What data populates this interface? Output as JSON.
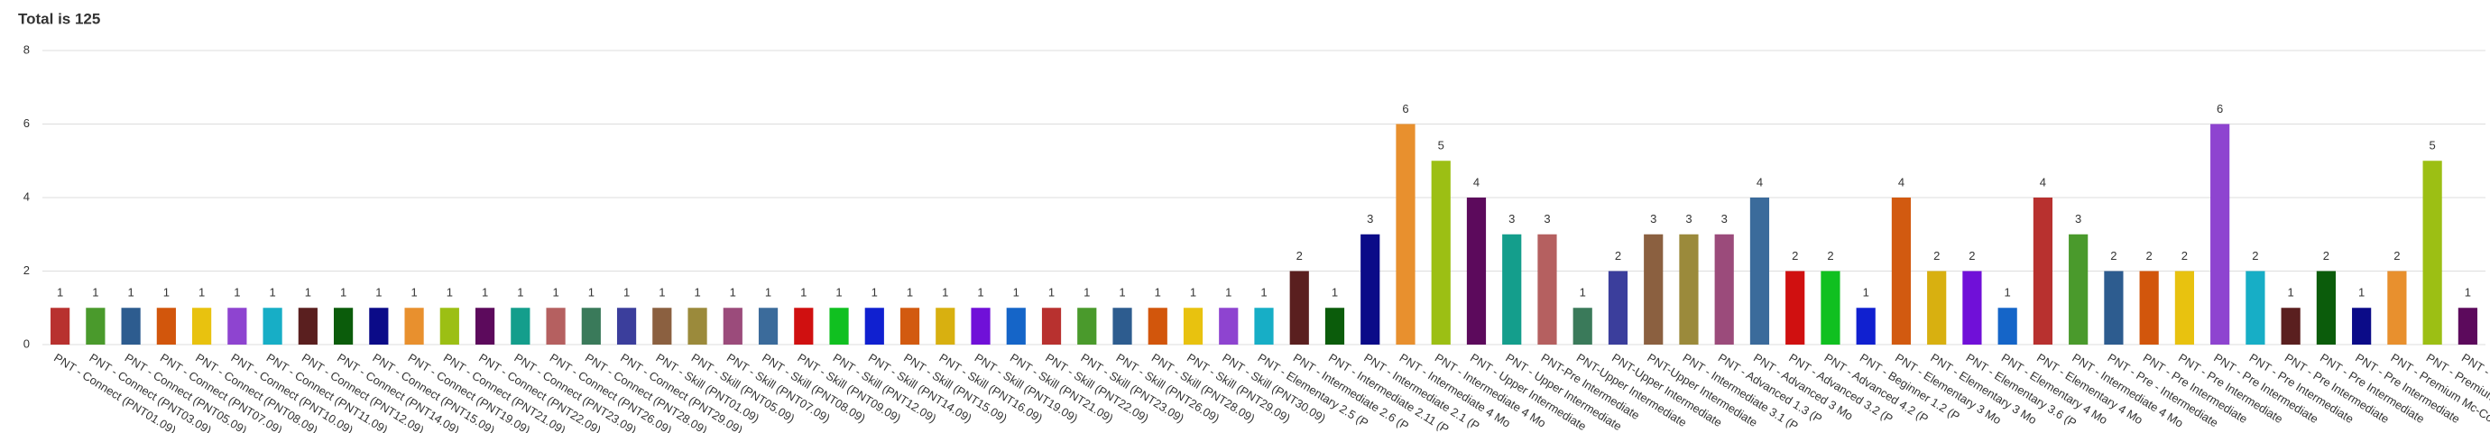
{
  "chart_data": {
    "type": "bar",
    "title": "Total is 125",
    "categories": [
      "PNT - Connect (PNT01.09)",
      "PNT - Connect (PNT03.09)",
      "PNT - Connect (PNT05.09)",
      "PNT - Connect (PNT07.09)",
      "PNT - Connect (PNT08.09)",
      "PNT - Connect (PNT10.09)",
      "PNT - Connect (PNT11.09)",
      "PNT - Connect (PNT12.09)",
      "PNT - Connect (PNT14.09)",
      "PNT - Connect (PNT15.09)",
      "PNT - Connect (PNT19.09)",
      "PNT - Connect (PNT21.09)",
      "PNT - Connect (PNT22.09)",
      "PNT - Connect (PNT23.09)",
      "PNT - Connect (PNT26.09)",
      "PNT - Connect (PNT28.09)",
      "PNT - Connect (PNT29.09)",
      "PNT - Skill (PNT01.09)",
      "PNT - Skill (PNT05.09)",
      "PNT - Skill (PNT07.09)",
      "PNT - Skill (PNT08.09)",
      "PNT - Skill (PNT09.09)",
      "PNT - Skill (PNT12.09)",
      "PNT - Skill (PNT14.09)",
      "PNT - Skill (PNT15.09)",
      "PNT - Skill (PNT16.09)",
      "PNT - Skill (PNT19.09)",
      "PNT - Skill (PNT21.09)",
      "PNT - Skill (PNT22.09)",
      "PNT - Skill (PNT23.09)",
      "PNT - Skill (PNT26.09)",
      "PNT - Skill (PNT28.09)",
      "PNT - Skill (PNT29.09)",
      "PNT - Skill (PNT30.09)",
      "PNT - Elementary 2.5 (P",
      "PNT - Intermediate 2.6 (P",
      "PNT - Intermediate 2.11 (P",
      "PNT - Intermediate 2.1 (P",
      "PNT - Intermediate 4 Mo",
      "PNT - Intermediate 4 Mo",
      "PNT - Upper Intermediate",
      "PNT - Upper Intermediate",
      "PNT-Pre Intermediate",
      "PNT-Upper Intermediate",
      "PNT-Upper Intermediate",
      "PNT-Upper Intermediate",
      "PNT - Intermediate 3.1 (P",
      "PNT - Advanced 1.3 (P",
      "PNT - Advanced 3 Mo",
      "PNT - Advanced 3.2 (P",
      "PNT - Advanced 4.2 (P",
      "PNT - Beginner 1.2 (P",
      "PNT - Elementary 3 Mo",
      "PNT - Elementary 3 Mo",
      "PNT - Elementary 3.6 (P",
      "PNT - Elementary 4 Mo",
      "PNT - Elementary 4 Mo",
      "PNT - Intermediate 4 Mo",
      "PNT - Pre - Intermediate",
      "PNT - Pre Intermediate",
      "PNT - Pre Intermediate",
      "PNT - Pre Intermediate",
      "PNT - Pre Intermediate",
      "PNT - Pre Intermediate",
      "PNT - Pre Intermediate",
      "PNT - Pre Intermediate",
      "PNT - Premium Mc-Co",
      "PNT - Premium Mc-Co",
      "PNT - Upper Intermediate"
    ],
    "values": [
      1,
      1,
      1,
      1,
      1,
      1,
      1,
      1,
      1,
      1,
      1,
      1,
      1,
      1,
      1,
      1,
      1,
      1,
      1,
      1,
      1,
      1,
      1,
      1,
      1,
      1,
      1,
      1,
      1,
      1,
      1,
      1,
      1,
      1,
      1,
      2,
      1,
      3,
      6,
      5,
      4,
      3,
      3,
      1,
      2,
      3,
      3,
      3,
      4,
      2,
      2,
      1,
      4,
      2,
      2,
      1,
      4,
      3,
      2,
      2,
      2,
      6,
      2,
      1,
      2,
      1,
      2,
      5,
      1
    ],
    "palette": [
      "#b8312f",
      "#4a9a2c",
      "#2d5c8f",
      "#d2560c",
      "#e8c20f",
      "#8e44d0",
      "#17aec6",
      "#5a1f1f",
      "#0b5c0b",
      "#0b0b88",
      "#e8902e",
      "#9cbf14",
      "#5c0a5c",
      "#149e8c",
      "#b56060",
      "#3a7a5a",
      "#3b3e9c",
      "#8b6040",
      "#9b8a3b",
      "#9b4b7b",
      "#3b6b9b",
      "#d01010",
      "#10c020",
      "#1020d0",
      "#d25a10",
      "#d8b010",
      "#7010d8",
      "#1565c8"
    ],
    "ylim": [
      0,
      8
    ],
    "yticks": [
      0,
      2,
      4,
      6,
      8
    ],
    "grid": true
  }
}
